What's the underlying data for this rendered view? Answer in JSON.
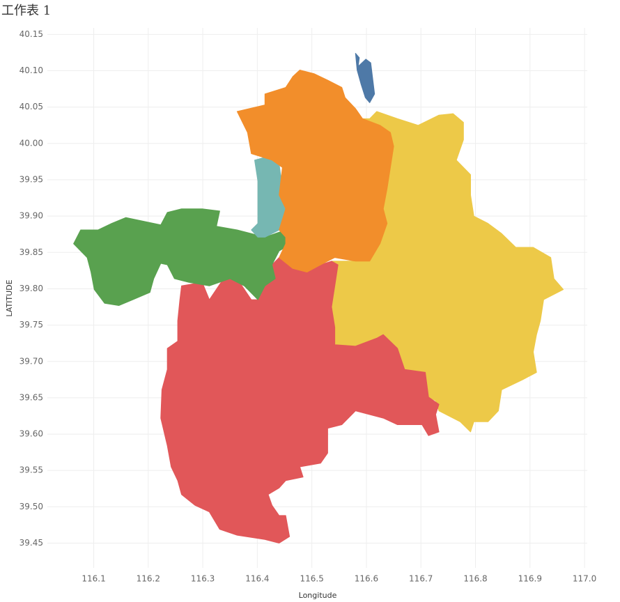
{
  "chart_data": {
    "type": "map",
    "title": "工作表 1",
    "x_label": "Longitude",
    "y_label": "LATITUDE",
    "xlim": [
      116.015,
      117.005
    ],
    "ylim": [
      39.416,
      40.159
    ],
    "grid": true,
    "xticks": [
      116.1,
      116.2,
      116.3,
      116.4,
      116.5,
      116.6,
      116.7,
      116.8,
      116.9,
      {
        "value": 117.0,
        "label": "117.0"
      }
    ],
    "yticks": [
      40.15,
      {
        "value": 40.1,
        "label": "40.10"
      },
      40.05,
      {
        "value": 40.0,
        "label": "40.00"
      },
      39.95,
      {
        "value": 39.9,
        "label": "39.90"
      },
      39.85,
      {
        "value": 39.8,
        "label": "39.80"
      },
      39.75,
      {
        "value": 39.7,
        "label": "39.70"
      },
      39.65,
      {
        "value": 39.6,
        "label": "39.60"
      },
      39.55,
      {
        "value": 39.5,
        "label": "39.50"
      },
      39.45
    ],
    "series": [
      {
        "color": "#edc948",
        "x": [
          116.606,
          116.619,
          116.657,
          116.695,
          116.733,
          116.759,
          116.778,
          116.778,
          116.765,
          116.791,
          116.791,
          116.797,
          116.823,
          116.848,
          116.874,
          116.906,
          116.938,
          116.944,
          116.961,
          116.925,
          116.919,
          116.912,
          116.906,
          116.912,
          116.887,
          116.848,
          116.842,
          116.823,
          116.797,
          116.791,
          116.772,
          116.733,
          116.727,
          116.714,
          116.708,
          116.67,
          116.657,
          116.631,
          116.619,
          116.58,
          116.542,
          116.542,
          116.536,
          116.542,
          116.548,
          116.536,
          116.606,
          116.625,
          116.638,
          116.631,
          116.638,
          116.644,
          116.65,
          116.644,
          116.625,
          116.593
        ],
        "y": [
          40.034,
          40.044,
          40.034,
          40.025,
          40.039,
          40.041,
          40.029,
          40.005,
          39.977,
          39.957,
          39.929,
          39.9,
          39.89,
          39.876,
          39.857,
          39.857,
          39.843,
          39.814,
          39.799,
          39.785,
          39.756,
          39.737,
          39.713,
          39.685,
          39.675,
          39.661,
          39.632,
          39.617,
          39.617,
          39.603,
          39.617,
          39.632,
          39.646,
          39.651,
          39.685,
          39.689,
          39.718,
          39.737,
          39.732,
          39.721,
          39.723,
          39.747,
          39.775,
          39.804,
          39.833,
          39.838,
          39.838,
          39.862,
          39.89,
          39.91,
          39.938,
          39.967,
          39.996,
          40.015,
          40.025,
          40.034
        ]
      },
      {
        "color": "#e15759",
        "x": [
          116.261,
          116.299,
          116.312,
          116.338,
          116.363,
          116.389,
          116.401,
          116.414,
          116.433,
          116.427,
          116.44,
          116.465,
          116.491,
          116.516,
          116.536,
          116.548,
          116.542,
          116.536,
          116.542,
          116.542,
          116.58,
          116.619,
          116.631,
          116.657,
          116.67,
          116.708,
          116.714,
          116.733,
          116.727,
          116.733,
          116.714,
          116.702,
          116.657,
          116.631,
          116.58,
          116.555,
          116.529,
          116.529,
          116.516,
          116.478,
          116.484,
          116.452,
          116.44,
          116.42,
          116.427,
          116.44,
          116.452,
          116.459,
          116.44,
          116.414,
          116.363,
          116.331,
          116.312,
          116.286,
          116.261,
          116.254,
          116.242,
          116.235,
          116.223,
          116.225,
          116.235,
          116.235,
          116.254,
          116.254,
          116.258
        ],
        "y": [
          39.804,
          39.809,
          39.785,
          39.814,
          39.814,
          39.785,
          39.785,
          39.804,
          39.814,
          39.833,
          39.843,
          39.828,
          39.823,
          39.833,
          39.838,
          39.833,
          39.804,
          39.775,
          39.747,
          39.723,
          39.721,
          39.732,
          39.737,
          39.718,
          39.689,
          39.685,
          39.651,
          39.641,
          39.627,
          39.603,
          39.598,
          39.613,
          39.613,
          39.622,
          39.632,
          39.613,
          39.608,
          39.574,
          39.56,
          39.555,
          39.541,
          39.536,
          39.526,
          39.517,
          39.502,
          39.488,
          39.488,
          39.459,
          39.45,
          39.455,
          39.461,
          39.469,
          39.493,
          39.502,
          39.517,
          39.536,
          39.555,
          39.584,
          39.622,
          39.661,
          39.689,
          39.718,
          39.728,
          39.756,
          39.785
        ]
      },
      {
        "color": "#59a14f",
        "x": [
          116.063,
          116.076,
          116.108,
          116.133,
          116.159,
          116.197,
          116.223,
          116.235,
          116.261,
          116.299,
          116.331,
          116.325,
          116.363,
          116.389,
          116.414,
          116.452,
          116.472,
          116.44,
          116.427,
          116.433,
          116.414,
          116.401,
          116.376,
          116.35,
          116.312,
          116.274,
          116.248,
          116.235,
          116.223,
          116.21,
          116.203,
          116.172,
          116.146,
          116.12,
          116.101,
          116.095,
          116.088
        ],
        "y": [
          39.862,
          39.881,
          39.881,
          39.89,
          39.898,
          39.892,
          39.888,
          39.905,
          39.91,
          39.91,
          39.907,
          39.886,
          39.881,
          39.876,
          39.871,
          39.881,
          39.866,
          39.852,
          39.833,
          39.814,
          39.804,
          39.785,
          39.804,
          39.814,
          39.804,
          39.809,
          39.814,
          39.833,
          39.835,
          39.814,
          39.795,
          39.785,
          39.777,
          39.78,
          39.799,
          39.823,
          39.843
        ]
      },
      {
        "color": "#76b7b2",
        "x": [
          116.395,
          116.414,
          116.44,
          116.446,
          116.452,
          116.44,
          116.414,
          116.401,
          116.389,
          116.401,
          116.401,
          116.401
        ],
        "y": [
          39.977,
          39.981,
          39.972,
          39.938,
          39.91,
          39.881,
          39.871,
          39.871,
          39.881,
          39.89,
          39.919,
          39.948
        ]
      },
      {
        "color": "#f28e2b",
        "x": [
          116.363,
          116.414,
          116.414,
          116.452,
          116.465,
          116.478,
          116.504,
          116.529,
          116.555,
          116.561,
          116.58,
          116.593,
          116.625,
          116.644,
          116.65,
          116.644,
          116.638,
          116.631,
          116.638,
          116.625,
          116.606,
          116.58,
          116.542,
          116.516,
          116.491,
          116.465,
          116.44,
          116.452,
          116.452,
          116.44,
          116.452,
          116.44,
          116.446,
          116.427,
          116.389,
          116.382
        ],
        "y": [
          40.044,
          40.053,
          40.068,
          40.077,
          40.092,
          40.101,
          40.096,
          40.087,
          40.077,
          40.063,
          40.048,
          40.034,
          40.025,
          40.015,
          39.996,
          39.967,
          39.938,
          39.91,
          39.89,
          39.862,
          39.838,
          39.838,
          39.843,
          39.833,
          39.823,
          39.828,
          39.843,
          39.862,
          39.871,
          39.881,
          39.91,
          39.929,
          39.967,
          39.977,
          39.986,
          40.015
        ]
      },
      {
        "color": "#4e79a7",
        "x": [
          116.58,
          116.587,
          116.585,
          116.599,
          116.608,
          116.615,
          116.606,
          116.598,
          116.59,
          116.583
        ],
        "y": [
          40.124,
          40.118,
          40.106,
          40.116,
          40.111,
          40.068,
          40.056,
          40.063,
          40.082,
          40.101
        ]
      }
    ]
  }
}
